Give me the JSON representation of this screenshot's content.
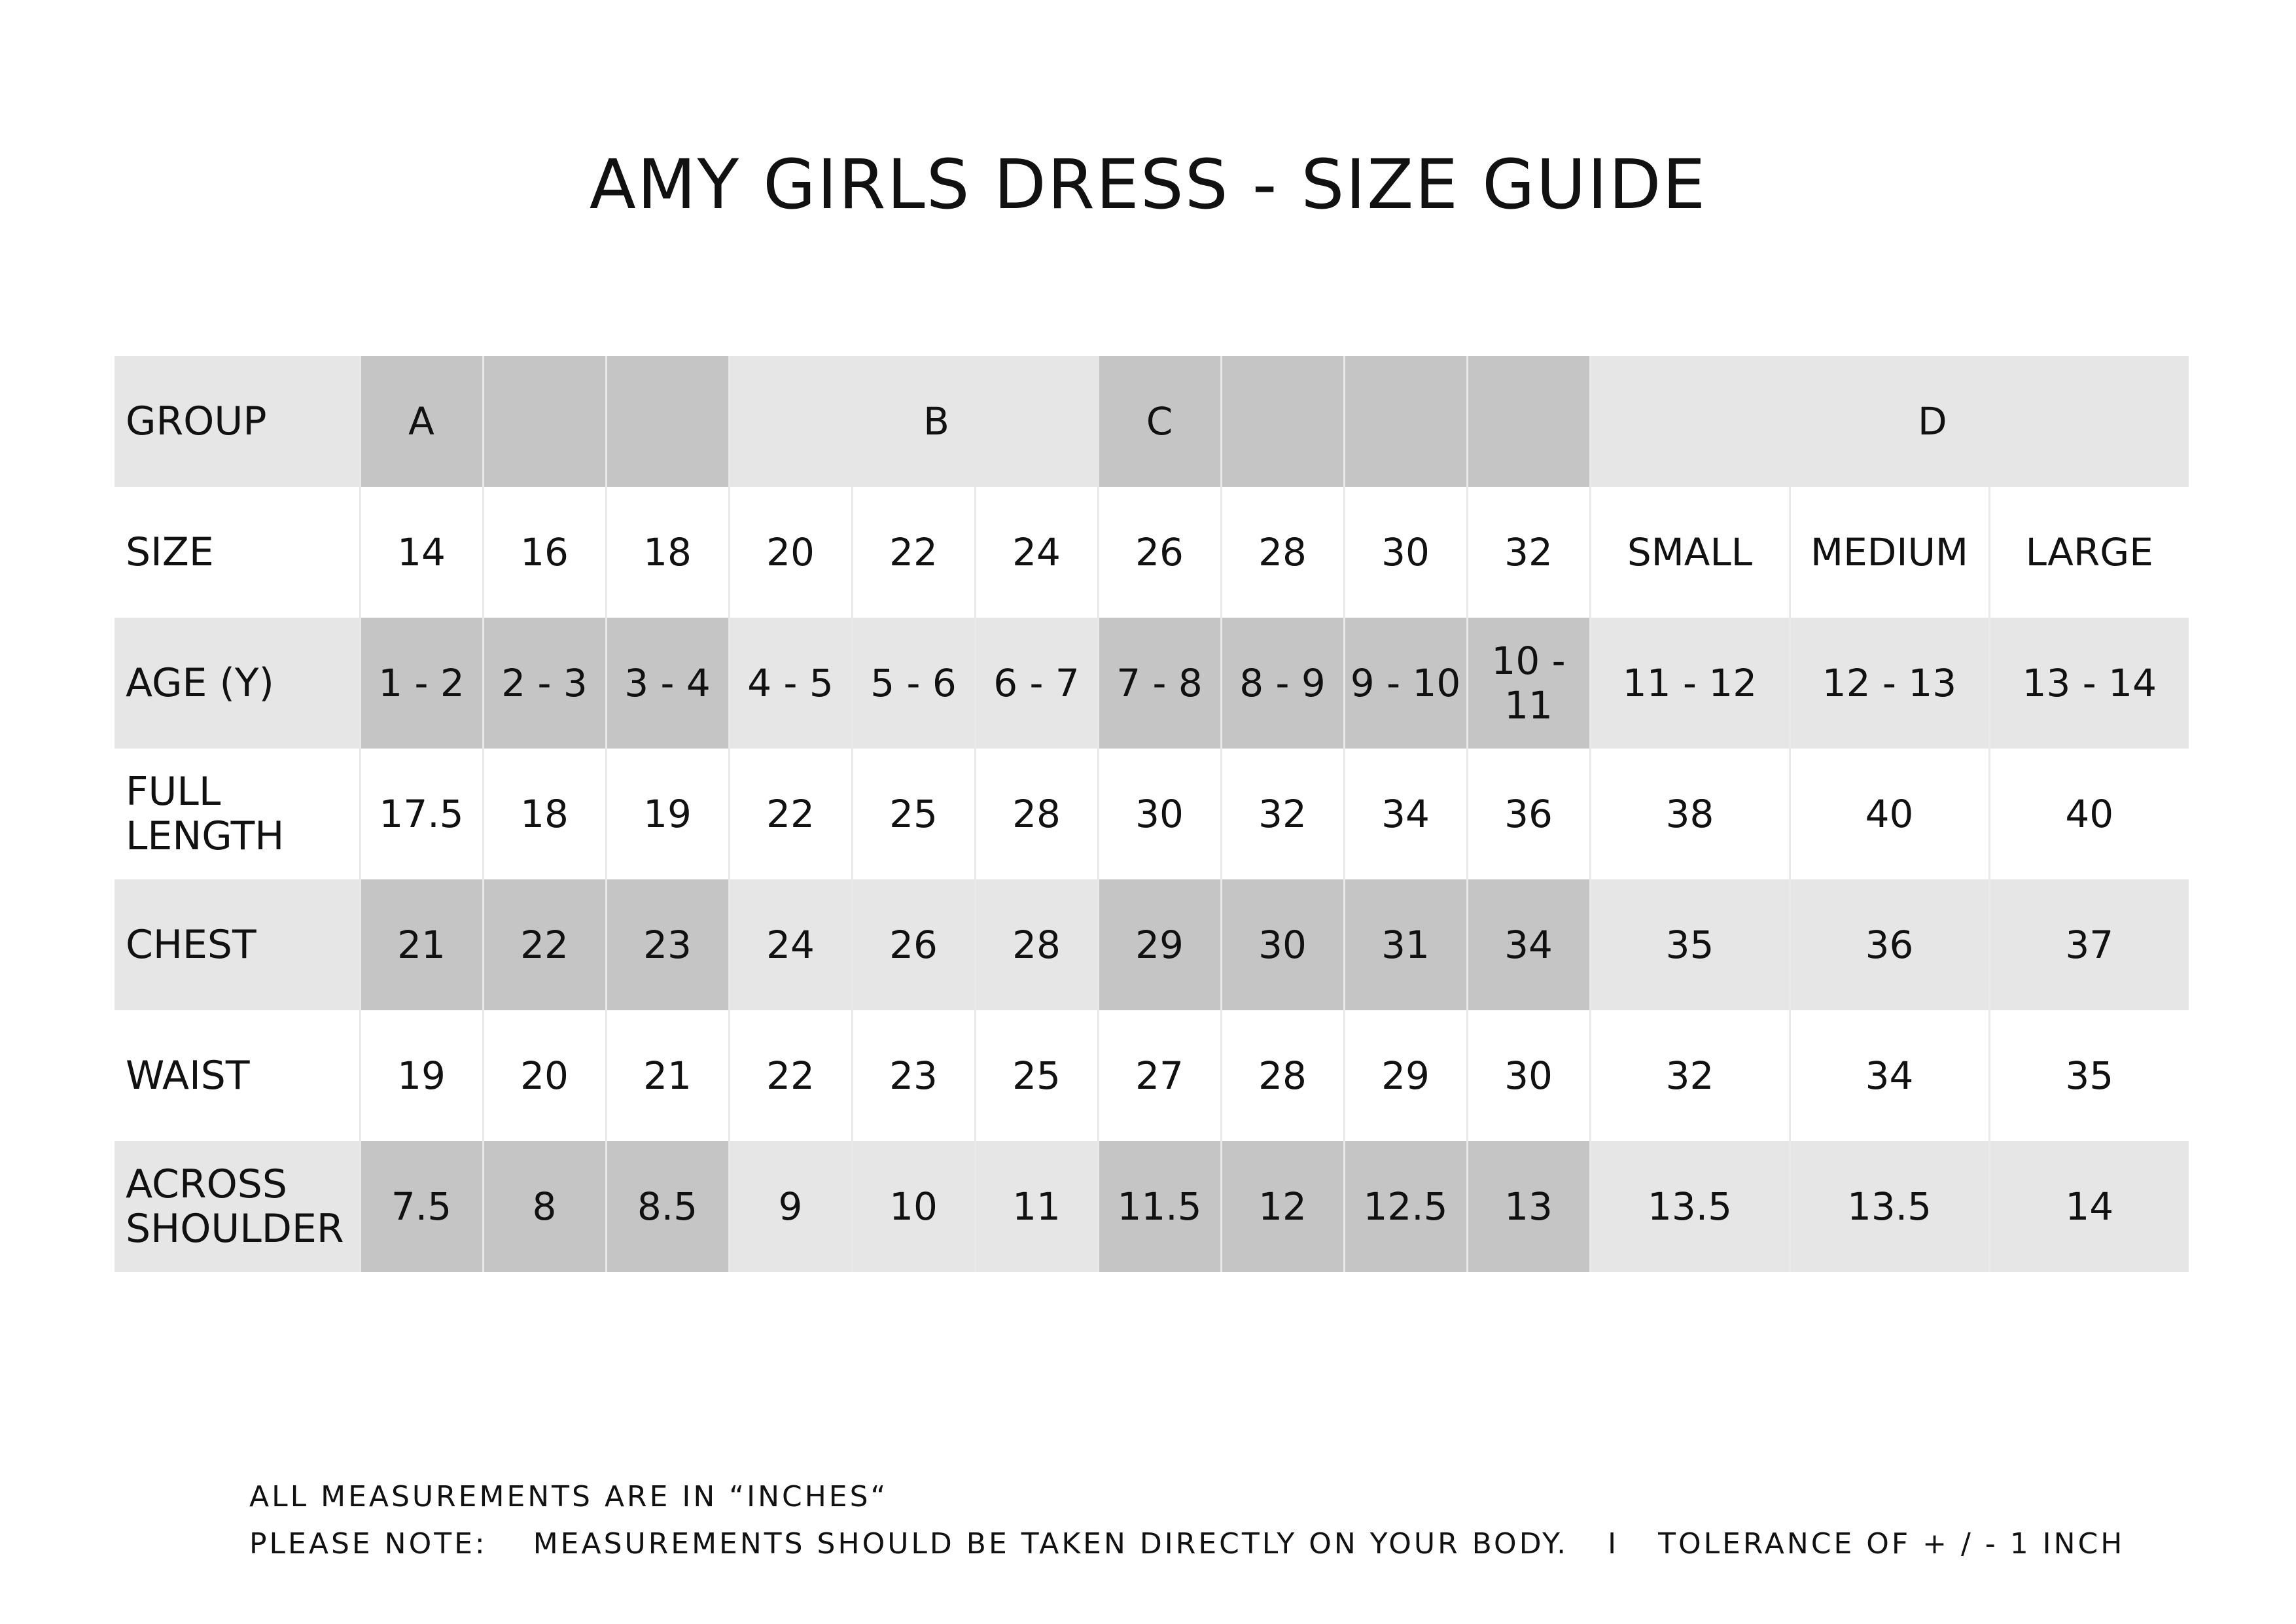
{
  "title": "AMY GIRLS DRESS - SIZE GUIDE",
  "table": {
    "group_row": {
      "label": "GROUP",
      "groups": [
        "A",
        "B",
        "C",
        "D"
      ]
    },
    "rows": [
      {
        "label": "SIZE",
        "values": [
          "14",
          "16",
          "18",
          "20",
          "22",
          "24",
          "26",
          "28",
          "30",
          "32",
          "SMALL",
          "MEDIUM",
          "LARGE"
        ]
      },
      {
        "label": "AGE (Y)",
        "values": [
          "1 - 2",
          "2 - 3",
          "3 - 4",
          "4 - 5",
          "5 - 6",
          "6 - 7",
          "7 - 8",
          "8 - 9",
          "9 - 10",
          "10 - 11",
          "11 - 12",
          "12 - 13",
          "13 - 14"
        ]
      },
      {
        "label_line1": "FULL",
        "label_line2": "LENGTH",
        "values": [
          "17.5",
          "18",
          "19",
          "22",
          "25",
          "28",
          "30",
          "32",
          "34",
          "36",
          "38",
          "40",
          "40"
        ]
      },
      {
        "label": "CHEST",
        "values": [
          "21",
          "22",
          "23",
          "24",
          "26",
          "28",
          "29",
          "30",
          "31",
          "34",
          "35",
          "36",
          "37"
        ]
      },
      {
        "label": "WAIST",
        "values": [
          "19",
          "20",
          "21",
          "22",
          "23",
          "25",
          "27",
          "28",
          "29",
          "30",
          "32",
          "34",
          "35"
        ]
      },
      {
        "label_line1": "ACROSS",
        "label_line2": "SHOULDER",
        "values": [
          "7.5",
          "8",
          "8.5",
          "9",
          "10",
          "11",
          "11.5",
          "12",
          "12.5",
          "13",
          "13.5",
          "13.5",
          "14"
        ]
      }
    ]
  },
  "footer": {
    "line1": "ALL MEASUREMENTS ARE IN “INCHES“",
    "note_label": "PLEASE NOTE:",
    "note_text": "MEASUREMENTS SHOULD BE TAKEN DIRECTLY ON YOUR BODY.",
    "separator": "I",
    "tolerance": "TOLERANCE OF + / - 1 INCH"
  },
  "colors": {
    "light_shade": "#e6e6e6",
    "dark_shade": "#c6c5c6",
    "white": "#ffffff",
    "text": "#111111"
  }
}
